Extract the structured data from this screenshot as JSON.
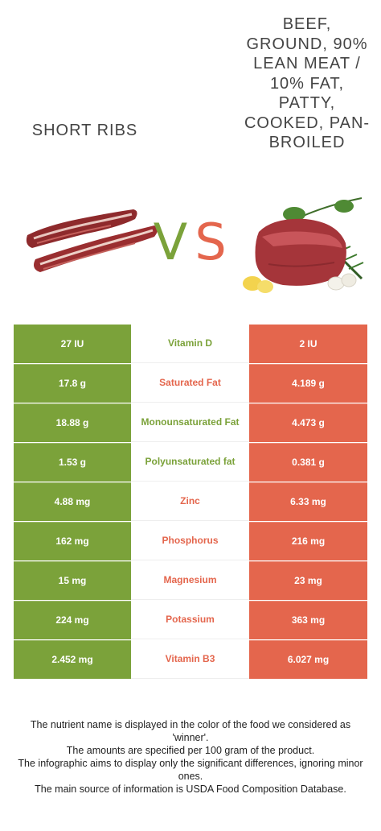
{
  "foods": {
    "left": {
      "name": "SHORT RIBS",
      "color": "#7ba23a"
    },
    "right": {
      "name": "BEEF, GROUND, 90% LEAN MEAT / 10% FAT, PATTY, COOKED, PAN-BROILED",
      "color": "#e4664d"
    }
  },
  "vs": {
    "v": "V",
    "s": "S"
  },
  "rows": [
    {
      "nutrient": "Vitamin D",
      "left": "27 IU",
      "right": "2 IU",
      "winner": "left"
    },
    {
      "nutrient": "Saturated Fat",
      "left": "17.8 g",
      "right": "4.189 g",
      "winner": "right"
    },
    {
      "nutrient": "Monounsaturated Fat",
      "left": "18.88 g",
      "right": "4.473 g",
      "winner": "left"
    },
    {
      "nutrient": "Polyunsaturated fat",
      "left": "1.53 g",
      "right": "0.381 g",
      "winner": "left"
    },
    {
      "nutrient": "Zinc",
      "left": "4.88 mg",
      "right": "6.33 mg",
      "winner": "right"
    },
    {
      "nutrient": "Phosphorus",
      "left": "162 mg",
      "right": "216 mg",
      "winner": "right"
    },
    {
      "nutrient": "Magnesium",
      "left": "15 mg",
      "right": "23 mg",
      "winner": "right"
    },
    {
      "nutrient": "Potassium",
      "left": "224 mg",
      "right": "363 mg",
      "winner": "right"
    },
    {
      "nutrient": "Vitamin B3",
      "left": "2.452 mg",
      "right": "6.027 mg",
      "winner": "right"
    }
  ],
  "footnote": [
    "The nutrient name is displayed in the color of the food we considered as 'winner'.",
    "The amounts are specified per 100 gram of the product.",
    "The infographic aims to display only the significant differences, ignoring minor ones.",
    "The main source of information is USDA Food Composition Database."
  ]
}
